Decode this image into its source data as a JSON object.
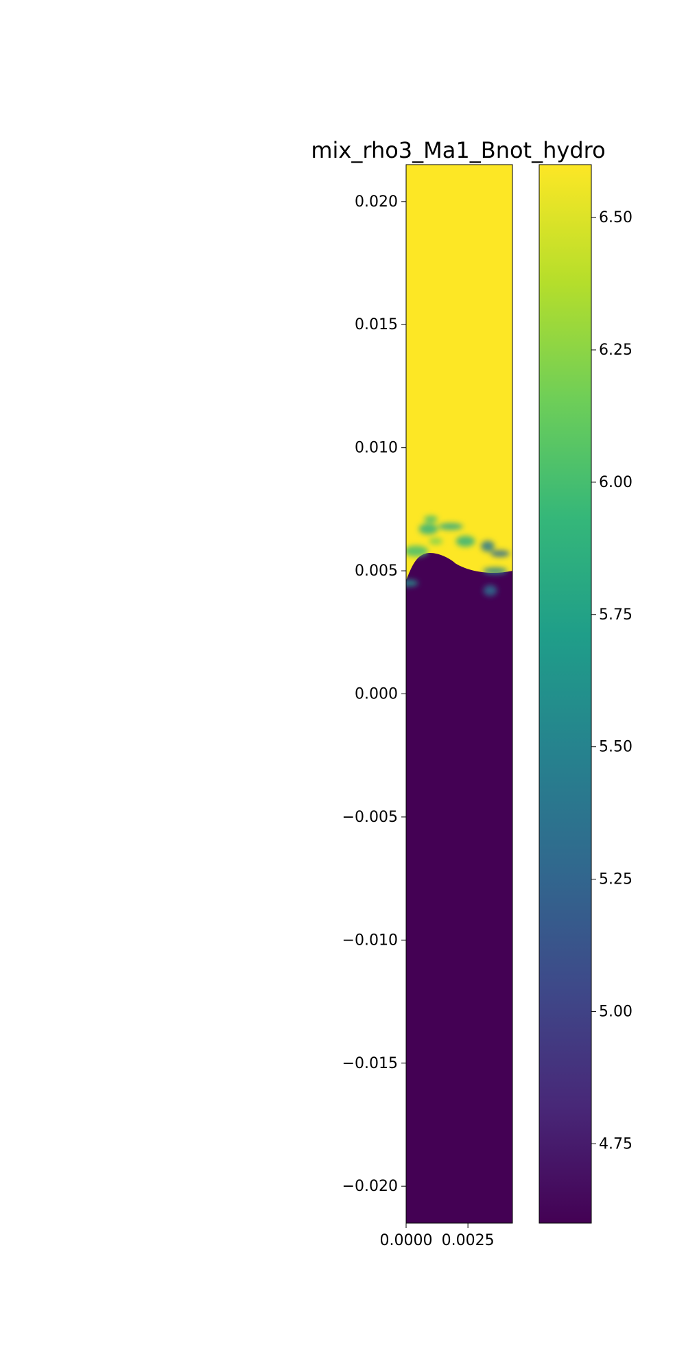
{
  "chart_data": {
    "type": "heatmap",
    "title": "mix_rho3_Ma1_Bnot_hydro",
    "xlabel": "",
    "ylabel": "",
    "xlim": [
      0.0,
      0.0043
    ],
    "ylim": [
      -0.0215,
      0.0215
    ],
    "x_ticks": [
      {
        "value": 0.0,
        "label": "0.0000"
      },
      {
        "value": 0.0025,
        "label": "0.0025"
      }
    ],
    "y_ticks": [
      {
        "value": 0.02,
        "label": "0.020"
      },
      {
        "value": 0.015,
        "label": "0.015"
      },
      {
        "value": 0.01,
        "label": "0.010"
      },
      {
        "value": 0.005,
        "label": "0.005"
      },
      {
        "value": 0.0,
        "label": "0.000"
      },
      {
        "value": -0.005,
        "label": "−0.005"
      },
      {
        "value": -0.01,
        "label": "−0.010"
      },
      {
        "value": -0.015,
        "label": "−0.015"
      },
      {
        "value": -0.02,
        "label": "−0.020"
      }
    ],
    "colorbar": {
      "colormap": "viridis",
      "range": [
        4.6,
        6.6
      ],
      "ticks": [
        {
          "value": 6.5,
          "label": "6.50"
        },
        {
          "value": 6.25,
          "label": "6.25"
        },
        {
          "value": 6.0,
          "label": "6.00"
        },
        {
          "value": 5.75,
          "label": "5.75"
        },
        {
          "value": 5.5,
          "label": "5.50"
        },
        {
          "value": 5.25,
          "label": "5.25"
        },
        {
          "value": 5.0,
          "label": "5.00"
        },
        {
          "value": 4.75,
          "label": "4.75"
        }
      ]
    },
    "field": {
      "upper_value": 6.6,
      "lower_value": 4.6,
      "interface_y_range": [
        0.004,
        0.0075
      ],
      "mixing_blobs": [
        {
          "x": 0.001,
          "y": 0.0071,
          "value": 6.0
        },
        {
          "x": 0.0009,
          "y": 0.0067,
          "value": 5.9
        },
        {
          "x": 0.0018,
          "y": 0.0068,
          "value": 5.8
        },
        {
          "x": 0.0033,
          "y": 0.006,
          "value": 5.4
        },
        {
          "x": 0.0038,
          "y": 0.0057,
          "value": 5.3
        },
        {
          "x": 0.0004,
          "y": 0.0058,
          "value": 6.0
        },
        {
          "x": 0.0012,
          "y": 0.0062,
          "value": 6.2
        },
        {
          "x": 0.0024,
          "y": 0.0062,
          "value": 5.9
        },
        {
          "x": 0.0036,
          "y": 0.005,
          "value": 5.5
        },
        {
          "x": 0.0034,
          "y": 0.0042,
          "value": 5.3
        },
        {
          "x": 0.0001,
          "y": 0.0045,
          "value": 5.6
        }
      ]
    }
  },
  "colors": {
    "viridis_stops": [
      "#440154",
      "#482878",
      "#3e4989",
      "#31688e",
      "#26828e",
      "#1f9e89",
      "#35b779",
      "#6ece58",
      "#b5de2b",
      "#fde725"
    ],
    "axis": "#000000",
    "background": "#ffffff"
  }
}
